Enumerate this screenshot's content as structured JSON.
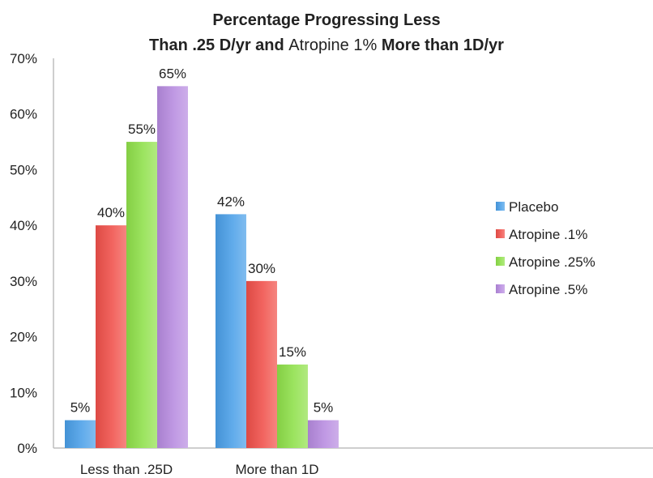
{
  "chart_data": {
    "type": "bar",
    "title_line1": "Percentage  Progressing Less",
    "title_line2_a": "Than .25 D/yr and ",
    "title_line2_b": "Atropine 1%",
    "title_line2_c": " More than 1D/yr",
    "categories": [
      "Less than .25D",
      "More than 1D"
    ],
    "series": [
      {
        "name": "Placebo",
        "values": [
          5,
          42
        ],
        "labels": [
          "5%",
          "42%"
        ],
        "color": "#4a9fe8"
      },
      {
        "name": "Atropine .1%",
        "values": [
          40,
          30
        ],
        "labels": [
          "40%",
          "30%"
        ],
        "color": "#f0504a"
      },
      {
        "name": "Atropine .25%",
        "values": [
          55,
          15
        ],
        "labels": [
          "55%",
          "15%"
        ],
        "color": "#8fe04a"
      },
      {
        "name": "Atropine .5%",
        "values": [
          65,
          5
        ],
        "labels": [
          "65%",
          "5%"
        ],
        "color": "#b78be0"
      }
    ],
    "yticks": [
      "0%",
      "10%",
      "20%",
      "30%",
      "40%",
      "50%",
      "60%",
      "70%"
    ],
    "ylim": [
      0,
      70
    ],
    "xlabel": "",
    "ylabel": "",
    "legend_position": "right",
    "grid": false
  }
}
